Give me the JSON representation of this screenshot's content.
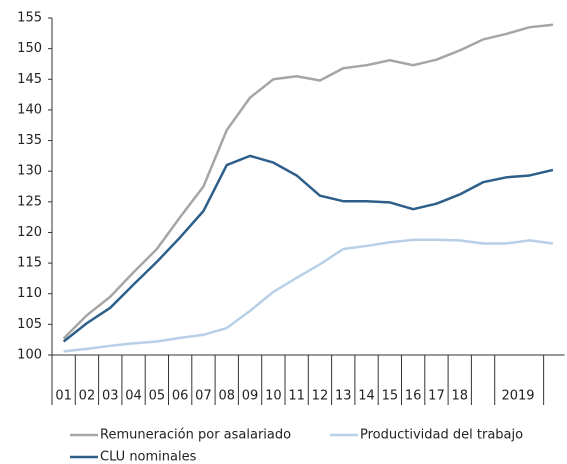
{
  "chart_data": {
    "type": "line",
    "categories": [
      "01",
      "02",
      "03",
      "04",
      "05",
      "06",
      "07",
      "08",
      "09",
      "10",
      "11",
      "12",
      "13",
      "14",
      "15",
      "16",
      "17",
      "18",
      null,
      "2019",
      null,
      null
    ],
    "series": [
      {
        "name": "Remuneración por asalariado",
        "color": "#a6a6a6",
        "values": [
          102.7,
          106.5,
          109.5,
          113.5,
          117.3,
          122.5,
          127.5,
          136.7,
          142,
          145,
          145.5,
          144.8,
          146.8,
          147.3,
          148.1,
          147.3,
          148.2,
          149.7,
          151.5,
          152.4,
          153.5,
          153.9
        ]
      },
      {
        "name": "Productividad del trabajo",
        "color": "#b7d0e8",
        "values": [
          100.6,
          101,
          101.5,
          101.9,
          102.2,
          102.8,
          103.3,
          104.4,
          107.2,
          110.3,
          112.6,
          114.8,
          117.3,
          117.8,
          118.4,
          118.8,
          118.8,
          118.7,
          118.2,
          118.2,
          118.7,
          118.2
        ]
      },
      {
        "name": "CLU nominales",
        "color": "#2e5f8a",
        "values": [
          102.2,
          105.2,
          107.7,
          111.5,
          115.2,
          119.2,
          123.5,
          131,
          132.5,
          131.4,
          129.3,
          126,
          125.1,
          125.1,
          124.9,
          123.8,
          124.7,
          126.2,
          128.2,
          129,
          129.3,
          130.2
        ]
      }
    ],
    "ylim": [
      100,
      155
    ],
    "yticks": [
      100,
      105,
      110,
      115,
      120,
      125,
      130,
      135,
      140,
      145,
      150,
      155
    ]
  }
}
